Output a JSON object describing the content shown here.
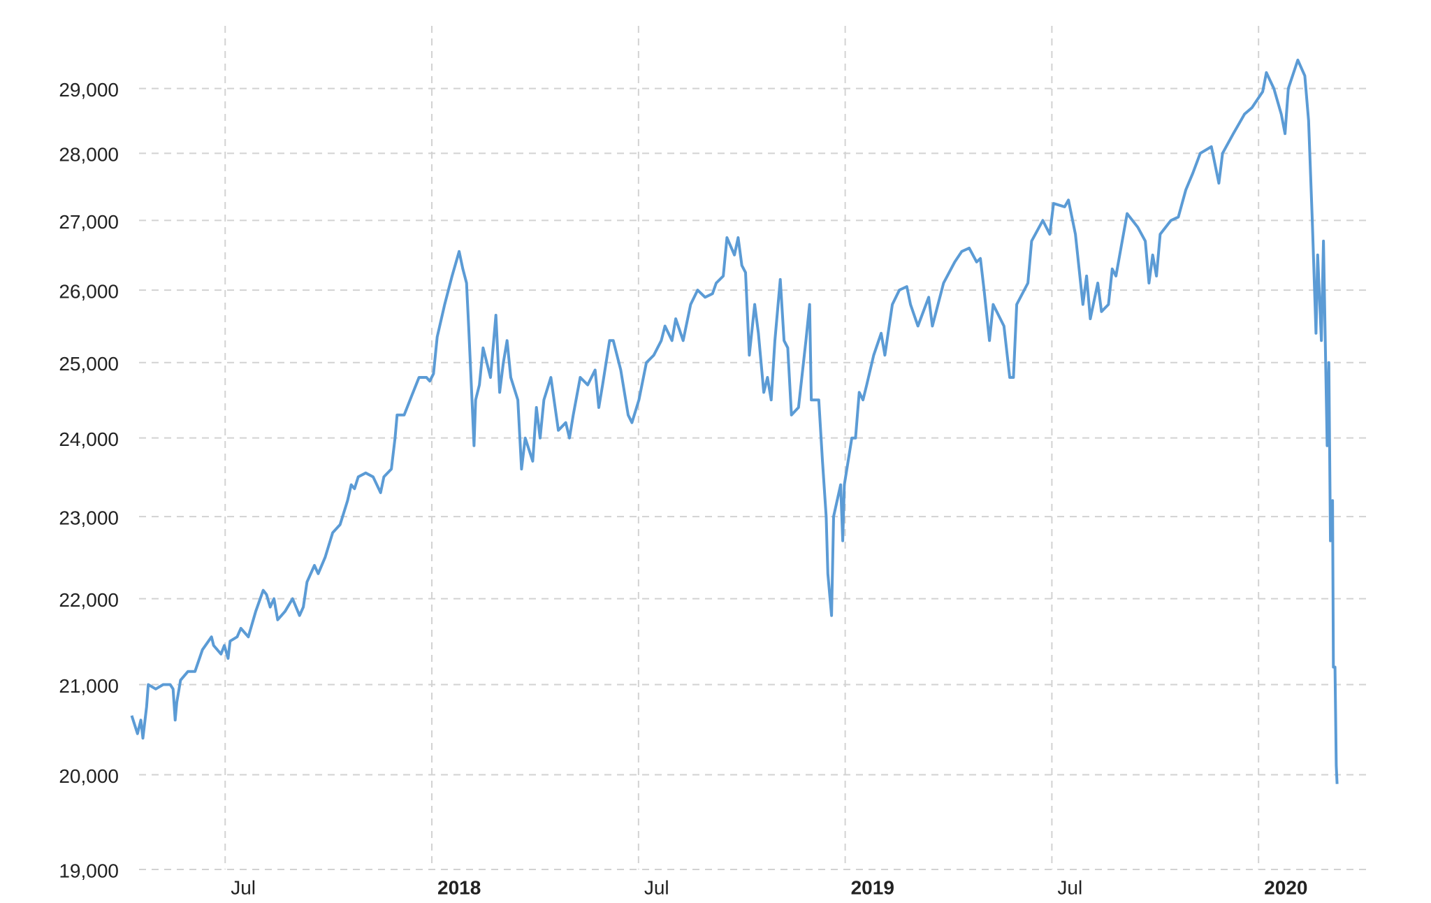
{
  "chart_data": {
    "type": "line",
    "yscale": "log",
    "grid": true,
    "xlim": [
      2017.268,
      2020.26
    ],
    "ylim": [
      19000,
      30000
    ],
    "xticks": [
      {
        "value": 2017.5,
        "label": "Jul"
      },
      {
        "value": 2018,
        "label": "2018"
      },
      {
        "value": 2018.5,
        "label": "Jul"
      },
      {
        "value": 2019,
        "label": "2019"
      },
      {
        "value": 2019.5,
        "label": "Jul"
      },
      {
        "value": 2020,
        "label": "2020"
      }
    ],
    "yticks": [
      {
        "value": 19000,
        "label": "19,000"
      },
      {
        "value": 20000,
        "label": "20,000"
      },
      {
        "value": 21000,
        "label": "21,000"
      },
      {
        "value": 22000,
        "label": "22,000"
      },
      {
        "value": 23000,
        "label": "23,000"
      },
      {
        "value": 24000,
        "label": "24,000"
      },
      {
        "value": 25000,
        "label": "25,000"
      },
      {
        "value": 26000,
        "label": "26,000"
      },
      {
        "value": 27000,
        "label": "27,000"
      },
      {
        "value": 28000,
        "label": "28,000"
      },
      {
        "value": 29000,
        "label": "29,000"
      }
    ],
    "x": [
      2017.274,
      2017.288,
      2017.296,
      2017.301,
      2017.31,
      2017.314,
      2017.332,
      2017.35,
      2017.367,
      2017.374,
      2017.379,
      2017.383,
      2017.392,
      2017.41,
      2017.427,
      2017.445,
      2017.467,
      2017.472,
      2017.49,
      2017.498,
      2017.507,
      2017.512,
      2017.529,
      2017.538,
      2017.556,
      2017.574,
      2017.592,
      2017.6,
      2017.609,
      2017.618,
      2017.627,
      2017.645,
      2017.663,
      2017.68,
      2017.689,
      2017.698,
      2017.716,
      2017.725,
      2017.742,
      2017.76,
      2017.778,
      2017.796,
      2017.805,
      2017.813,
      2017.822,
      2017.84,
      2017.858,
      2017.876,
      2017.884,
      2017.902,
      2017.911,
      2017.916,
      2017.933,
      2017.951,
      2017.969,
      2017.987,
      2017.995,
      2018.004,
      2018.013,
      2018.031,
      2018.049,
      2018.066,
      2018.075,
      2018.084,
      2018.089,
      2018.098,
      2018.102,
      2018.106,
      2018.115,
      2018.124,
      2018.142,
      2018.155,
      2018.164,
      2018.173,
      2018.182,
      2018.191,
      2018.208,
      2018.217,
      2018.226,
      2018.244,
      2018.253,
      2018.262,
      2018.271,
      2018.288,
      2018.306,
      2018.324,
      2018.333,
      2018.342,
      2018.359,
      2018.377,
      2018.395,
      2018.404,
      2018.413,
      2018.43,
      2018.439,
      2018.457,
      2018.475,
      2018.484,
      2018.501,
      2018.519,
      2018.537,
      2018.555,
      2018.564,
      2018.581,
      2018.59,
      2018.608,
      2018.626,
      2018.643,
      2018.661,
      2018.679,
      2018.688,
      2018.705,
      2018.714,
      2018.732,
      2018.741,
      2018.75,
      2018.759,
      2018.768,
      2018.781,
      2018.79,
      2018.803,
      2018.812,
      2018.821,
      2018.83,
      2018.843,
      2018.852,
      2018.861,
      2018.87,
      2018.887,
      2018.905,
      2018.914,
      2018.918,
      2018.936,
      2018.945,
      2018.954,
      2018.958,
      2018.967,
      2018.972,
      2018.989,
      2018.994,
      2018.998,
      2019.016,
      2019.025,
      2019.034,
      2019.043,
      2019.052,
      2019.069,
      2019.087,
      2019.096,
      2019.114,
      2019.131,
      2019.149,
      2019.158,
      2019.176,
      2019.202,
      2019.211,
      2019.238,
      2019.265,
      2019.282,
      2019.3,
      2019.318,
      2019.327,
      2019.336,
      2019.349,
      2019.358,
      2019.384,
      2019.398,
      2019.407,
      2019.415,
      2019.442,
      2019.451,
      2019.478,
      2019.495,
      2019.504,
      2019.531,
      2019.54,
      2019.557,
      2019.575,
      2019.584,
      2019.593,
      2019.611,
      2019.62,
      2019.637,
      2019.646,
      2019.655,
      2019.682,
      2019.708,
      2019.726,
      2019.735,
      2019.744,
      2019.753,
      2019.762,
      2019.788,
      2019.806,
      2019.824,
      2019.841,
      2019.859,
      2019.886,
      2019.904,
      2019.913,
      2019.939,
      2019.966,
      2019.984,
      2020.01,
      2020.019,
      2020.037,
      2020.055,
      2020.064,
      2020.072,
      2020.095,
      2020.112,
      2020.121,
      2020.13,
      2020.139,
      2020.143,
      2020.152,
      2020.157,
      2020.166,
      2020.17,
      2020.174,
      2020.179,
      2020.181,
      2020.185,
      2020.188,
      2020.19
    ],
    "series": [
      {
        "color": "#5b9bd5",
        "values": [
          20650,
          20450,
          20600,
          20400,
          20750,
          21000,
          20950,
          21000,
          21000,
          20950,
          20600,
          20800,
          21050,
          21150,
          21150,
          21400,
          21550,
          21450,
          21350,
          21450,
          21300,
          21500,
          21550,
          21650,
          21550,
          21850,
          22100,
          22050,
          21900,
          22000,
          21750,
          21850,
          22000,
          21800,
          21900,
          22200,
          22400,
          22300,
          22500,
          22800,
          22900,
          23200,
          23400,
          23350,
          23500,
          23550,
          23500,
          23300,
          23500,
          23600,
          24000,
          24300,
          24300,
          24550,
          24800,
          24800,
          24750,
          24850,
          25350,
          25800,
          26200,
          26550,
          26300,
          26100,
          25500,
          24400,
          23900,
          24500,
          24700,
          25200,
          24800,
          25650,
          24600,
          25000,
          25300,
          24800,
          24500,
          23600,
          24000,
          23700,
          24400,
          24000,
          24500,
          24800,
          24100,
          24200,
          24000,
          24300,
          24800,
          24700,
          24900,
          24400,
          24700,
          25300,
          25300,
          24900,
          24300,
          24200,
          24500,
          25000,
          25100,
          25300,
          25500,
          25300,
          25600,
          25300,
          25800,
          26000,
          25900,
          25950,
          26100,
          26200,
          26750,
          26500,
          26750,
          26350,
          26250,
          25100,
          25800,
          25400,
          24600,
          24800,
          24500,
          25300,
          26150,
          25300,
          25200,
          24300,
          24400,
          25300,
          25800,
          24500,
          24500,
          23700,
          23000,
          22300,
          21800,
          23000,
          23400,
          22700,
          23400,
          24000,
          24000,
          24600,
          24500,
          24700,
          25100,
          25400,
          25100,
          25800,
          26000,
          26050,
          25800,
          25500,
          25900,
          25500,
          26100,
          26400,
          26550,
          26600,
          26400,
          26450,
          26000,
          25300,
          25800,
          25500,
          24800,
          24800,
          25800,
          26100,
          26700,
          27000,
          26800,
          27250,
          27200,
          27300,
          26800,
          25800,
          26200,
          25600,
          26100,
          25700,
          25800,
          26300,
          26200,
          27100,
          26900,
          26700,
          26100,
          26500,
          26200,
          26800,
          27000,
          27050,
          27450,
          27700,
          28000,
          28100,
          27550,
          28000,
          28300,
          28600,
          28700,
          28950,
          29250,
          29000,
          28600,
          28300,
          29000,
          29450,
          29200,
          28500,
          27000,
          25400,
          26500,
          25300,
          26700,
          23900,
          25000,
          22700,
          23200,
          21200,
          21200,
          20100,
          19900
        ]
      }
    ]
  }
}
